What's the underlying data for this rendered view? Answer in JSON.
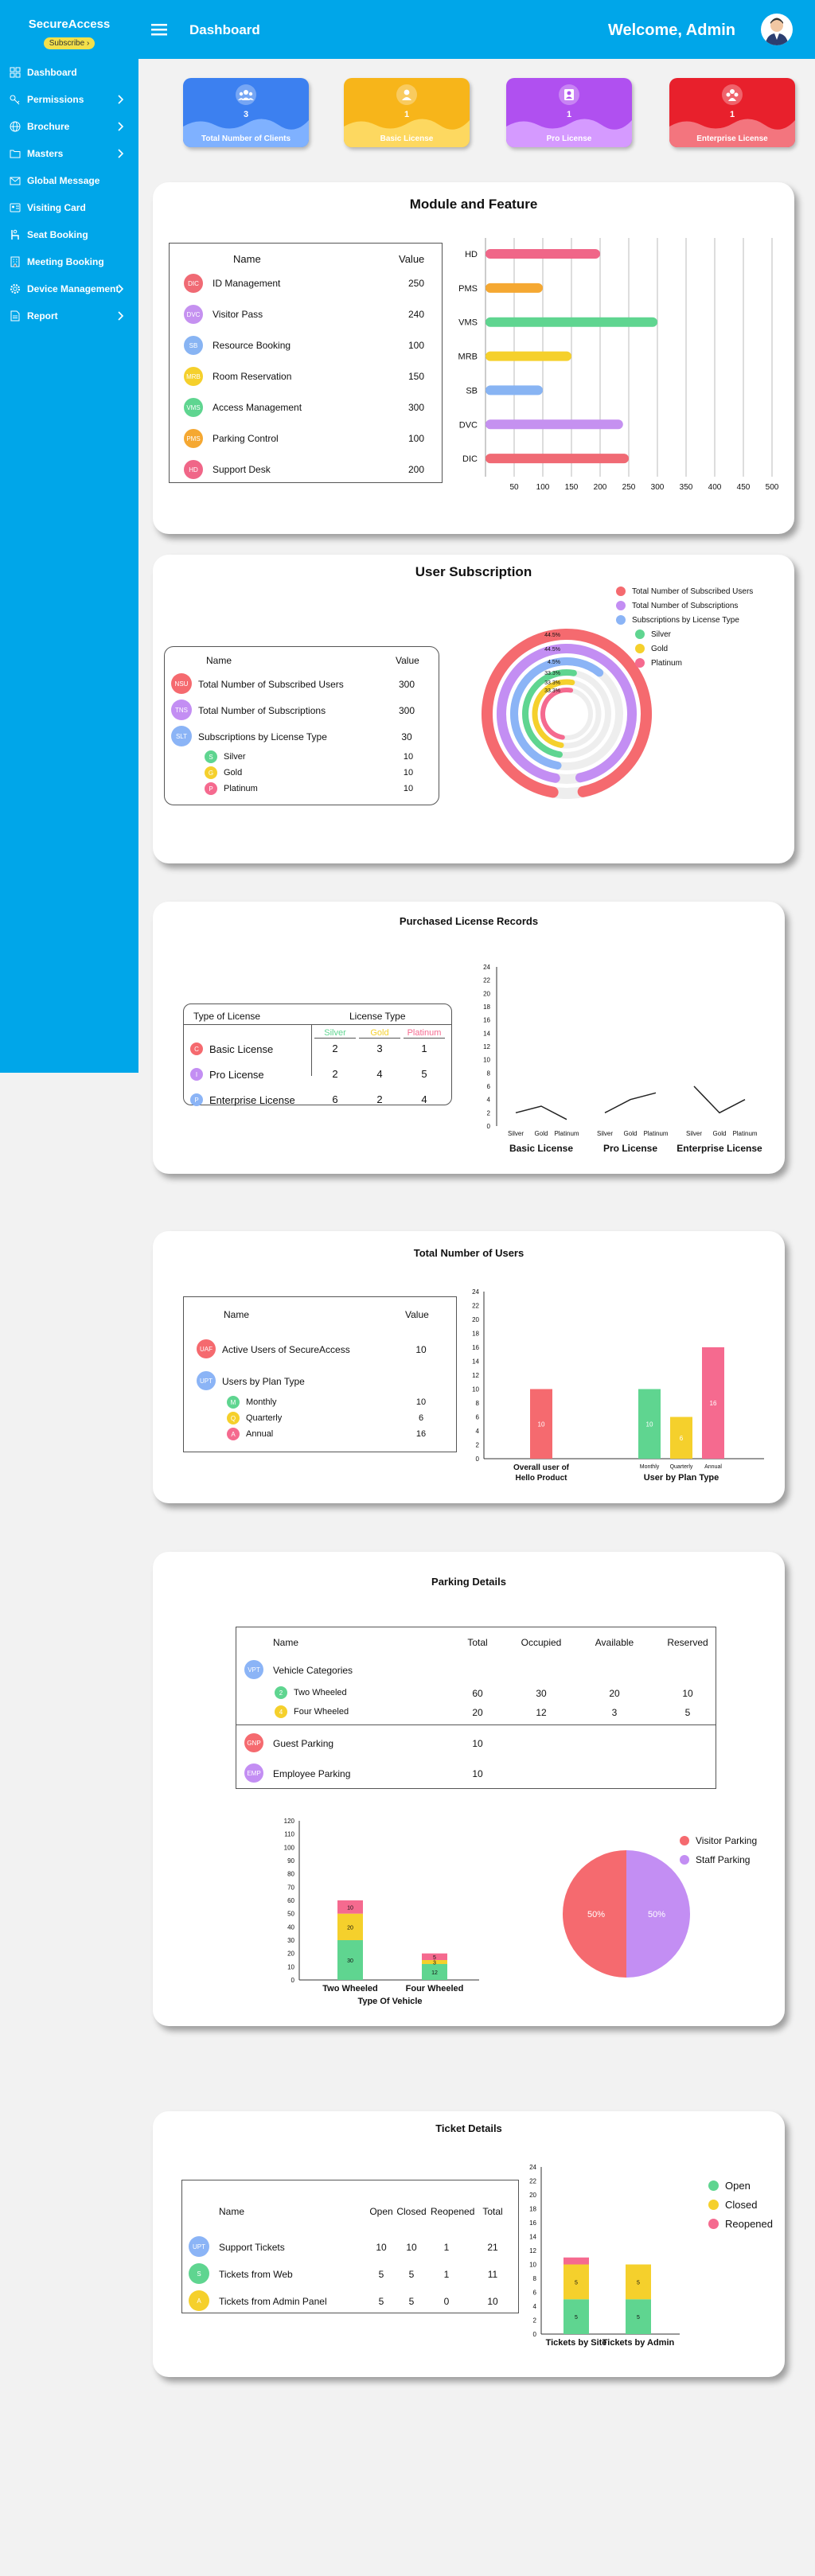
{
  "sidebar": {
    "brand": "SecureAccess",
    "subscribe": "Subscribe",
    "items": [
      {
        "label": "Dashboard",
        "icon": "dashboard-icon",
        "chev": false
      },
      {
        "label": "Permissions",
        "icon": "key-icon",
        "chev": true
      },
      {
        "label": "Brochure",
        "icon": "globe-icon",
        "chev": true
      },
      {
        "label": "Masters",
        "icon": "folder-icon",
        "chev": true
      },
      {
        "label": "Global Message",
        "icon": "mail-icon",
        "chev": false
      },
      {
        "label": "Visiting Card",
        "icon": "card-icon",
        "chev": false
      },
      {
        "label": "Seat Booking",
        "icon": "seat-icon",
        "chev": false
      },
      {
        "label": "Meeting Booking",
        "icon": "building-icon",
        "chev": false
      },
      {
        "label": "Device Management",
        "icon": "gear-icon",
        "chev": true
      },
      {
        "label": "Report",
        "icon": "report-icon",
        "chev": true
      }
    ]
  },
  "topbar": {
    "title": "Dashboard",
    "welcome": "Welcome, Admin"
  },
  "stats": [
    {
      "value": "3",
      "label": "Total Number of Clients",
      "color": "#3c80f0",
      "light": "#7fb1ff"
    },
    {
      "value": "1",
      "label": "Basic License",
      "color": "#f7b51a",
      "light": "#fdd860"
    },
    {
      "value": "1",
      "label": "Pro License",
      "color": "#b050f0",
      "light": "#d59aff"
    },
    {
      "value": "1",
      "label": "Enterprise License",
      "color": "#e8202c",
      "light": "#f3757e"
    }
  ],
  "modules": {
    "title": "Module and Feature",
    "col_name": "Name",
    "col_value": "Value",
    "rows": [
      {
        "code": "DIC",
        "name": "ID Management",
        "value": "250",
        "color": "#f06a74"
      },
      {
        "code": "DVC",
        "name": "Visitor Pass",
        "value": "240",
        "color": "#c591f0"
      },
      {
        "code": "SB",
        "name": "Resource Booking",
        "value": "100",
        "color": "#88b4f3"
      },
      {
        "code": "MRB",
        "name": "Room Reservation",
        "value": "150",
        "color": "#f5d02c"
      },
      {
        "code": "VMS",
        "name": "Access Management",
        "value": "300",
        "color": "#5fd590"
      },
      {
        "code": "PMS",
        "name": "Parking Control",
        "value": "100",
        "color": "#f5a832"
      },
      {
        "code": "HD",
        "name": "Support Desk",
        "value": "200",
        "color": "#f06688"
      }
    ]
  },
  "chart_data": [
    {
      "type": "bar",
      "orientation": "horizontal",
      "categories": [
        "HD",
        "PMS",
        "VMS",
        "MRB",
        "SB",
        "DVC",
        "DIC"
      ],
      "values": [
        200,
        100,
        300,
        150,
        100,
        240,
        250
      ],
      "colors": [
        "#f06688",
        "#f5a832",
        "#5fd590",
        "#f5d02c",
        "#88b4f3",
        "#c591f0",
        "#f06a74"
      ],
      "xticks": [
        "50",
        "100",
        "150",
        "200",
        "250",
        "300",
        "350",
        "400",
        "450",
        "500"
      ],
      "xlim": [
        0,
        500
      ]
    },
    {
      "type": "radial-bar",
      "title": "User Subscription",
      "series": [
        {
          "name": "Total Number of Subscribed Users",
          "value_label": "44.5%",
          "color": "#f56a6f"
        },
        {
          "name": "Total Number of Subscriptions",
          "value_label": "44.5%",
          "color": "#c38ef3"
        },
        {
          "name": "Subscriptions by License Type",
          "value_label": "4.5%",
          "color": "#8bb4f6"
        },
        {
          "name": "Silver",
          "value_label": "33.3%",
          "color": "#5fd590"
        },
        {
          "name": "Gold",
          "value_label": "33.3%",
          "color": "#f5d02c"
        },
        {
          "name": "Platinum",
          "value_label": "33.3%",
          "color": "#f56a8f"
        }
      ],
      "values": [
        300,
        300,
        30,
        10,
        10,
        10
      ]
    },
    {
      "type": "line",
      "title": "Purchased License Records",
      "groups": [
        "Basic License",
        "Pro License",
        "Enterprise License"
      ],
      "categories": [
        "Silver",
        "Gold",
        "Platinum"
      ],
      "values": [
        [
          2,
          3,
          1
        ],
        [
          2,
          4,
          5
        ],
        [
          6,
          2,
          4
        ]
      ],
      "ylim": [
        0,
        24
      ],
      "yticks": [
        "0",
        "2",
        "4",
        "6",
        "8",
        "10",
        "12",
        "14",
        "16",
        "18",
        "20",
        "22",
        "24"
      ]
    },
    {
      "type": "bar",
      "title": "Total Number of Users",
      "groups": [
        "Overall user of Hello Product",
        "User by Plan Type"
      ],
      "categories": [
        "",
        "Monthly",
        "Quarterly",
        "Annual"
      ],
      "values": [
        10,
        10,
        6,
        16
      ],
      "colors": [
        "#f56a6f",
        "#5fd590",
        "#f5d02c",
        "#f56a8f"
      ],
      "ylim": [
        0,
        24
      ],
      "yticks": [
        "0",
        "2",
        "4",
        "6",
        "8",
        "10",
        "12",
        "14",
        "16",
        "18",
        "20",
        "22",
        "24"
      ]
    },
    {
      "type": "bar",
      "stacked": true,
      "title": "Parking Details",
      "xlabel": "Type Of Vehicle",
      "categories": [
        "Two Wheeled",
        "Four Wheeled"
      ],
      "series": [
        {
          "name": "Occupied",
          "values": [
            30,
            12
          ],
          "color": "#5fd590"
        },
        {
          "name": "Available",
          "values": [
            20,
            3
          ],
          "color": "#f5d02c"
        },
        {
          "name": "Reserved",
          "values": [
            10,
            5
          ],
          "color": "#f56a8f"
        }
      ],
      "ylim": [
        0,
        120
      ],
      "yticks": [
        "0",
        "10",
        "20",
        "30",
        "40",
        "50",
        "60",
        "70",
        "80",
        "90",
        "100",
        "110",
        "120"
      ]
    },
    {
      "type": "pie",
      "slices": [
        {
          "name": "Visitor Parking",
          "value": 50,
          "label": "50%",
          "color": "#f56a6f"
        },
        {
          "name": "Staff Parking",
          "value": 50,
          "label": "50%",
          "color": "#c38ef3"
        }
      ]
    },
    {
      "type": "bar",
      "stacked": true,
      "title": "Ticket Details",
      "categories": [
        "Tickets by Site",
        "Tickets by Admin"
      ],
      "series": [
        {
          "name": "Open",
          "values": [
            5,
            5
          ],
          "color": "#5fd590"
        },
        {
          "name": "Closed",
          "values": [
            5,
            5
          ],
          "color": "#f5d02c"
        },
        {
          "name": "Reopened",
          "values": [
            1,
            0
          ],
          "color": "#f56a8f"
        }
      ],
      "ylim": [
        0,
        24
      ],
      "yticks": [
        "0",
        "2",
        "4",
        "6",
        "8",
        "10",
        "12",
        "14",
        "16",
        "18",
        "20",
        "22",
        "24"
      ]
    }
  ],
  "subscription": {
    "title": "User Subscription",
    "col_name": "Name",
    "col_value": "Value",
    "rows": [
      {
        "code": "NSU",
        "name": "Total Number of Subscribed Users",
        "value": "300",
        "color": "#f56a6f"
      },
      {
        "code": "TNS",
        "name": "Total Number of Subscriptions",
        "value": "300",
        "color": "#c38ef3"
      },
      {
        "code": "SLT",
        "name": "Subscriptions by License Type",
        "value": "30",
        "color": "#8bb4f6"
      }
    ],
    "sub": [
      {
        "code": "S",
        "name": "Silver",
        "value": "10",
        "color": "#5fd590"
      },
      {
        "code": "G",
        "name": "Gold",
        "value": "10",
        "color": "#f5d02c"
      },
      {
        "code": "P",
        "name": "Platinum",
        "value": "10",
        "color": "#f56a8f"
      }
    ]
  },
  "license": {
    "title": "Purchased License Records",
    "col_type": "Type of License",
    "col_group": "License Type",
    "cols": [
      "Silver",
      "Gold",
      "Platinum"
    ],
    "rows": [
      {
        "code": "C",
        "name": "Basic License",
        "values": [
          "2",
          "3",
          "1"
        ],
        "color": "#f56a6f"
      },
      {
        "code": "I",
        "name": "Pro License",
        "values": [
          "2",
          "4",
          "5"
        ],
        "color": "#c38ef3"
      },
      {
        "code": "P",
        "name": "Enterprise License",
        "values": [
          "6",
          "2",
          "4"
        ],
        "color": "#8bb4f6"
      }
    ]
  },
  "users": {
    "title": "Total Number of Users",
    "col_name": "Name",
    "col_value": "Value",
    "active": {
      "code": "UAF",
      "name": "Active Users of SecureAccess",
      "value": "10",
      "color": "#f56a6f"
    },
    "plan": {
      "code": "UPT",
      "name": "Users by Plan Type",
      "color": "#8bb4f6"
    },
    "sub": [
      {
        "code": "M",
        "name": "Monthly",
        "value": "10",
        "color": "#5fd590"
      },
      {
        "code": "Q",
        "name": "Quarterly",
        "value": "6",
        "color": "#f5d02c"
      },
      {
        "code": "A",
        "name": "Annual",
        "value": "16",
        "color": "#f56a8f"
      }
    ],
    "group_labels": [
      "Overall user of Hello Product",
      "User by Plan Type"
    ],
    "bar_cats": [
      "Monthly",
      "Quarterly",
      "Annual"
    ]
  },
  "parking": {
    "title": "Parking Details",
    "cols": [
      "Name",
      "Total",
      "Occupied",
      "Available",
      "Reserved"
    ],
    "cat": {
      "code": "VPT",
      "name": "Vehicle Categories",
      "color": "#8bb4f6"
    },
    "sub": [
      {
        "code": "2",
        "name": "Two Wheeled",
        "values": [
          "60",
          "30",
          "20",
          "10"
        ],
        "color": "#5fd590"
      },
      {
        "code": "4",
        "name": "Four Wheeled",
        "values": [
          "20",
          "12",
          "3",
          "5"
        ],
        "color": "#f5d02c"
      }
    ],
    "other": [
      {
        "code": "GNP",
        "name": "Guest Parking",
        "value": "10",
        "color": "#f56a6f"
      },
      {
        "code": "EMP",
        "name": "Employee Parking",
        "value": "10",
        "color": "#c38ef3"
      }
    ],
    "xlabel": "Type Of Vehicle"
  },
  "tickets": {
    "title": "Ticket Details",
    "cols": [
      "Name",
      "Open",
      "Closed",
      "Reopened",
      "Total"
    ],
    "rows": [
      {
        "code": "UPT",
        "name": "Support Tickets",
        "values": [
          "10",
          "10",
          "1",
          "21"
        ],
        "color": "#8bb4f6"
      },
      {
        "code": "S",
        "name": "Tickets from Web",
        "values": [
          "5",
          "5",
          "1",
          "11"
        ],
        "color": "#5fd590"
      },
      {
        "code": "A",
        "name": "Tickets from Admin Panel",
        "values": [
          "5",
          "5",
          "0",
          "10"
        ],
        "color": "#f5d02c"
      }
    ]
  }
}
